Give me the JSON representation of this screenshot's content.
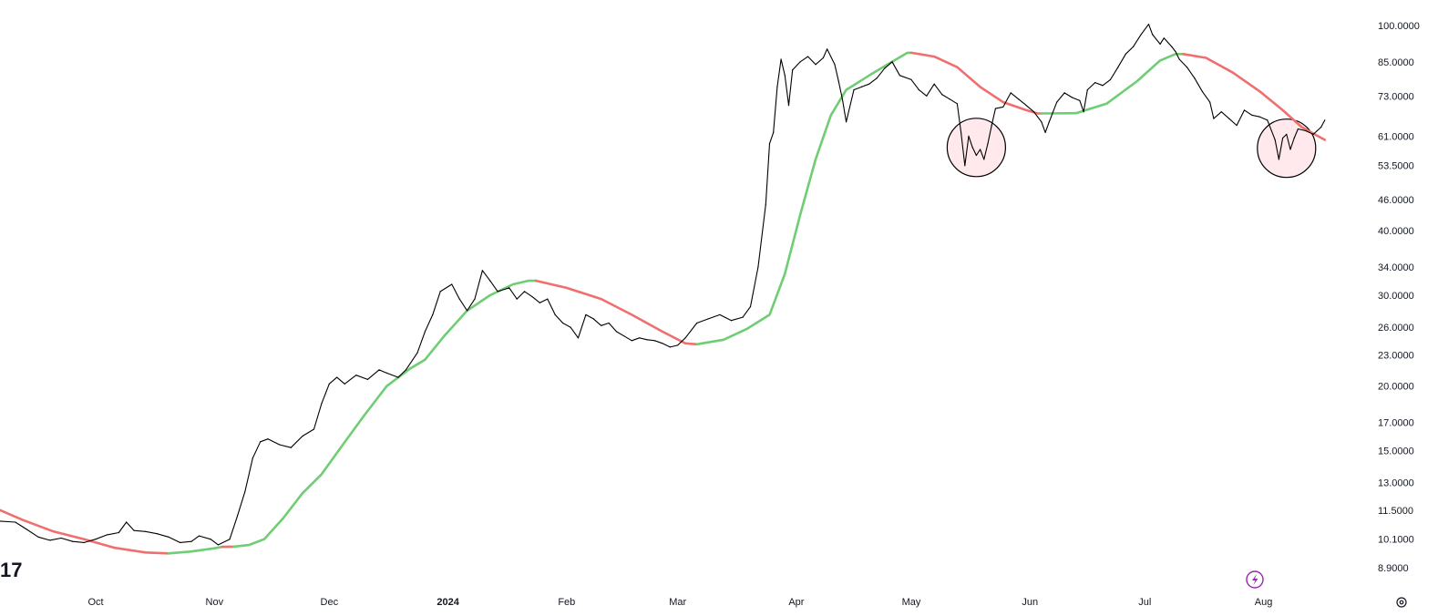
{
  "chart_data": {
    "type": "line",
    "scale": "log",
    "grid": false,
    "y_ticks": [
      "100.0000",
      "85.0000",
      "73.0000",
      "61.0000",
      "53.5000",
      "46.0000",
      "40.0000",
      "34.0000",
      "30.0000",
      "26.0000",
      "23.0000",
      "20.0000",
      "17.0000",
      "15.0000",
      "13.0000",
      "11.5000",
      "10.1000",
      "8.9000"
    ],
    "x_ticks": [
      {
        "label": "Oct",
        "date": "2023-10-01",
        "bold": false
      },
      {
        "label": "Nov",
        "date": "2023-11-01",
        "bold": false
      },
      {
        "label": "Dec",
        "date": "2023-12-01",
        "bold": false
      },
      {
        "label": "2024",
        "date": "2024-01-01",
        "bold": true
      },
      {
        "label": "Feb",
        "date": "2024-02-01",
        "bold": false
      },
      {
        "label": "Mar",
        "date": "2024-03-01",
        "bold": false
      },
      {
        "label": "Apr",
        "date": "2024-04-01",
        "bold": false
      },
      {
        "label": "May",
        "date": "2024-05-01",
        "bold": false
      },
      {
        "label": "Jun",
        "date": "2024-06-01",
        "bold": false
      },
      {
        "label": "Jul",
        "date": "2024-07-01",
        "bold": false
      },
      {
        "label": "Aug",
        "date": "2024-08-01",
        "bold": false
      }
    ],
    "x_range": [
      "2023-09-06",
      "2024-08-28"
    ],
    "y_range": [
      8.3,
      112
    ],
    "series": [
      {
        "kind": "price",
        "color": "#000000",
        "points": [
          [
            "2023-09-06",
            10.95
          ],
          [
            "2023-09-10",
            10.9
          ],
          [
            "2023-09-13",
            10.55
          ],
          [
            "2023-09-16",
            10.2
          ],
          [
            "2023-09-19",
            10.05
          ],
          [
            "2023-09-22",
            10.15
          ],
          [
            "2023-09-25",
            10.0
          ],
          [
            "2023-09-28",
            9.95
          ],
          [
            "2023-10-01",
            10.1
          ],
          [
            "2023-10-04",
            10.3
          ],
          [
            "2023-10-07",
            10.4
          ],
          [
            "2023-10-09",
            10.9
          ],
          [
            "2023-10-11",
            10.5
          ],
          [
            "2023-10-14",
            10.45
          ],
          [
            "2023-10-17",
            10.35
          ],
          [
            "2023-10-20",
            10.2
          ],
          [
            "2023-10-23",
            9.95
          ],
          [
            "2023-10-26",
            10.0
          ],
          [
            "2023-10-28",
            10.25
          ],
          [
            "2023-10-31",
            10.1
          ],
          [
            "2023-11-02",
            9.85
          ],
          [
            "2023-11-05",
            10.1
          ],
          [
            "2023-11-07",
            11.2
          ],
          [
            "2023-11-09",
            12.5
          ],
          [
            "2023-11-11",
            14.5
          ],
          [
            "2023-11-13",
            15.6
          ],
          [
            "2023-11-15",
            15.8
          ],
          [
            "2023-11-18",
            15.4
          ],
          [
            "2023-11-21",
            15.2
          ],
          [
            "2023-11-24",
            16.0
          ],
          [
            "2023-11-27",
            16.5
          ],
          [
            "2023-11-29",
            18.5
          ],
          [
            "2023-12-01",
            20.2
          ],
          [
            "2023-12-03",
            20.8
          ],
          [
            "2023-12-05",
            20.2
          ],
          [
            "2023-12-08",
            21.0
          ],
          [
            "2023-12-11",
            20.6
          ],
          [
            "2023-12-14",
            21.5
          ],
          [
            "2023-12-16",
            21.2
          ],
          [
            "2023-12-19",
            20.8
          ],
          [
            "2023-12-21",
            21.5
          ],
          [
            "2023-12-24",
            23.2
          ],
          [
            "2023-12-26",
            25.5
          ],
          [
            "2023-12-28",
            27.5
          ],
          [
            "2023-12-30",
            30.5
          ],
          [
            "2024-01-02",
            31.5
          ],
          [
            "2024-01-04",
            29.5
          ],
          [
            "2024-01-06",
            28.0
          ],
          [
            "2024-01-08",
            29.5
          ],
          [
            "2024-01-10",
            33.5
          ],
          [
            "2024-01-12",
            32.0
          ],
          [
            "2024-01-14",
            30.5
          ],
          [
            "2024-01-17",
            31.0
          ],
          [
            "2024-01-19",
            29.5
          ],
          [
            "2024-01-21",
            30.5
          ],
          [
            "2024-01-23",
            29.8
          ],
          [
            "2024-01-25",
            29.0
          ],
          [
            "2024-01-27",
            29.5
          ],
          [
            "2024-01-29",
            27.5
          ],
          [
            "2024-01-31",
            26.5
          ],
          [
            "2024-02-02",
            26.0
          ],
          [
            "2024-02-04",
            24.8
          ],
          [
            "2024-02-06",
            27.5
          ],
          [
            "2024-02-08",
            27.0
          ],
          [
            "2024-02-10",
            26.2
          ],
          [
            "2024-02-12",
            26.5
          ],
          [
            "2024-02-14",
            25.5
          ],
          [
            "2024-02-16",
            25.0
          ],
          [
            "2024-02-18",
            24.5
          ],
          [
            "2024-02-20",
            24.8
          ],
          [
            "2024-02-22",
            24.6
          ],
          [
            "2024-02-24",
            24.5
          ],
          [
            "2024-02-26",
            24.2
          ],
          [
            "2024-02-28",
            23.8
          ],
          [
            "2024-03-01",
            24.0
          ],
          [
            "2024-03-03",
            24.8
          ],
          [
            "2024-03-06",
            26.5
          ],
          [
            "2024-03-09",
            27.0
          ],
          [
            "2024-03-12",
            27.5
          ],
          [
            "2024-03-15",
            26.8
          ],
          [
            "2024-03-18",
            27.2
          ],
          [
            "2024-03-20",
            28.5
          ],
          [
            "2024-03-22",
            34.0
          ],
          [
            "2024-03-24",
            45.0
          ],
          [
            "2024-03-25",
            59.0
          ],
          [
            "2024-03-26",
            62.0
          ],
          [
            "2024-03-27",
            76.0
          ],
          [
            "2024-03-28",
            86.0
          ],
          [
            "2024-03-29",
            80.0
          ],
          [
            "2024-03-30",
            70.0
          ],
          [
            "2024-03-31",
            82.0
          ],
          [
            "2024-04-02",
            85.0
          ],
          [
            "2024-04-04",
            87.0
          ],
          [
            "2024-04-06",
            84.0
          ],
          [
            "2024-04-08",
            86.5
          ],
          [
            "2024-04-09",
            90.0
          ],
          [
            "2024-04-11",
            84.0
          ],
          [
            "2024-04-12",
            78.0
          ],
          [
            "2024-04-13",
            72.0
          ],
          [
            "2024-04-14",
            65.0
          ],
          [
            "2024-04-16",
            75.0
          ],
          [
            "2024-04-18",
            76.0
          ],
          [
            "2024-04-20",
            77.0
          ],
          [
            "2024-04-22",
            79.0
          ],
          [
            "2024-04-24",
            82.5
          ],
          [
            "2024-04-26",
            85.0
          ],
          [
            "2024-04-28",
            80.0
          ],
          [
            "2024-05-01",
            78.5
          ],
          [
            "2024-05-03",
            75.0
          ],
          [
            "2024-05-05",
            73.0
          ],
          [
            "2024-05-07",
            77.0
          ],
          [
            "2024-05-09",
            73.5
          ],
          [
            "2024-05-11",
            72.0
          ],
          [
            "2024-05-13",
            70.5
          ],
          [
            "2024-05-14",
            62.0
          ],
          [
            "2024-05-15",
            53.5
          ],
          [
            "2024-05-16",
            61.0
          ],
          [
            "2024-05-17",
            58.0
          ],
          [
            "2024-05-18",
            56.0
          ],
          [
            "2024-05-19",
            57.5
          ],
          [
            "2024-05-20",
            55.0
          ],
          [
            "2024-05-21",
            59.0
          ],
          [
            "2024-05-22",
            64.0
          ],
          [
            "2024-05-23",
            69.0
          ],
          [
            "2024-05-25",
            69.5
          ],
          [
            "2024-05-27",
            74.0
          ],
          [
            "2024-05-29",
            72.0
          ],
          [
            "2024-05-31",
            70.0
          ],
          [
            "2024-06-02",
            68.0
          ],
          [
            "2024-06-04",
            65.0
          ],
          [
            "2024-06-05",
            62.0
          ],
          [
            "2024-06-06",
            65.0
          ],
          [
            "2024-06-08",
            71.0
          ],
          [
            "2024-06-10",
            74.0
          ],
          [
            "2024-06-12",
            72.5
          ],
          [
            "2024-06-14",
            71.5
          ],
          [
            "2024-06-15",
            68.0
          ],
          [
            "2024-06-16",
            75.0
          ],
          [
            "2024-06-18",
            77.5
          ],
          [
            "2024-06-20",
            76.5
          ],
          [
            "2024-06-22",
            78.5
          ],
          [
            "2024-06-24",
            83.0
          ],
          [
            "2024-06-26",
            88.0
          ],
          [
            "2024-06-28",
            91.0
          ],
          [
            "2024-06-30",
            96.0
          ],
          [
            "2024-07-02",
            100.5
          ],
          [
            "2024-07-03",
            96.0
          ],
          [
            "2024-07-05",
            92.0
          ],
          [
            "2024-07-06",
            94.5
          ],
          [
            "2024-07-08",
            91.0
          ],
          [
            "2024-07-09",
            89.0
          ],
          [
            "2024-07-10",
            86.0
          ],
          [
            "2024-07-12",
            83.0
          ],
          [
            "2024-07-14",
            79.0
          ],
          [
            "2024-07-16",
            74.5
          ],
          [
            "2024-07-18",
            71.0
          ],
          [
            "2024-07-19",
            66.0
          ],
          [
            "2024-07-21",
            68.0
          ],
          [
            "2024-07-23",
            66.0
          ],
          [
            "2024-07-25",
            64.0
          ],
          [
            "2024-07-27",
            68.5
          ],
          [
            "2024-07-29",
            67.0
          ],
          [
            "2024-07-31",
            66.5
          ],
          [
            "2024-08-02",
            65.5
          ],
          [
            "2024-08-04",
            60.0
          ],
          [
            "2024-08-05",
            55.0
          ],
          [
            "2024-08-06",
            60.5
          ],
          [
            "2024-08-07",
            61.5
          ],
          [
            "2024-08-08",
            57.5
          ],
          [
            "2024-08-09",
            60.5
          ],
          [
            "2024-08-10",
            63.0
          ],
          [
            "2024-08-12",
            62.5
          ],
          [
            "2024-08-14",
            61.5
          ],
          [
            "2024-08-15",
            62.5
          ],
          [
            "2024-08-16",
            63.5
          ],
          [
            "2024-08-17",
            65.5
          ]
        ]
      },
      {
        "kind": "moving-average",
        "up_color": "#6fcd74",
        "down_color": "#ef6f6f",
        "points": [
          [
            "2023-09-06",
            11.5,
            "down"
          ],
          [
            "2023-09-12",
            11.0,
            "down"
          ],
          [
            "2023-09-20",
            10.45,
            "down"
          ],
          [
            "2023-09-28",
            10.1,
            "down"
          ],
          [
            "2023-10-06",
            9.72,
            "down"
          ],
          [
            "2023-10-14",
            9.52,
            "down"
          ],
          [
            "2023-10-20",
            9.48,
            "up"
          ],
          [
            "2023-10-26",
            9.56,
            "up"
          ],
          [
            "2023-11-01",
            9.7,
            "up"
          ],
          [
            "2023-11-03",
            9.76,
            "down"
          ],
          [
            "2023-11-06",
            9.77,
            "up"
          ],
          [
            "2023-11-10",
            9.84,
            "up"
          ],
          [
            "2023-11-14",
            10.1,
            "up"
          ],
          [
            "2023-11-19",
            11.1,
            "up"
          ],
          [
            "2023-11-24",
            12.4,
            "up"
          ],
          [
            "2023-11-29",
            13.5,
            "up"
          ],
          [
            "2023-12-04",
            15.2,
            "up"
          ],
          [
            "2023-12-10",
            17.5,
            "up"
          ],
          [
            "2023-12-16",
            20.0,
            "up"
          ],
          [
            "2023-12-22",
            21.6,
            "up"
          ],
          [
            "2023-12-26",
            22.5,
            "up"
          ],
          [
            "2023-12-31",
            25.0,
            "up"
          ],
          [
            "2024-01-06",
            28.0,
            "up"
          ],
          [
            "2024-01-12",
            30.0,
            "up"
          ],
          [
            "2024-01-18",
            31.5,
            "up"
          ],
          [
            "2024-01-22",
            32.0,
            "up"
          ],
          [
            "2024-01-24",
            32.0,
            "down"
          ],
          [
            "2024-02-01",
            31.0,
            "down"
          ],
          [
            "2024-02-10",
            29.5,
            "down"
          ],
          [
            "2024-02-18",
            27.5,
            "down"
          ],
          [
            "2024-02-26",
            25.5,
            "down"
          ],
          [
            "2024-03-03",
            24.2,
            "down"
          ],
          [
            "2024-03-06",
            24.1,
            "up"
          ],
          [
            "2024-03-13",
            24.6,
            "up"
          ],
          [
            "2024-03-19",
            25.8,
            "up"
          ],
          [
            "2024-03-25",
            27.5,
            "up"
          ],
          [
            "2024-03-29",
            33.0,
            "up"
          ],
          [
            "2024-04-02",
            43.0,
            "up"
          ],
          [
            "2024-04-06",
            55.0,
            "up"
          ],
          [
            "2024-04-10",
            67.0,
            "up"
          ],
          [
            "2024-04-14",
            75.0,
            "up"
          ],
          [
            "2024-04-20",
            80.0,
            "up"
          ],
          [
            "2024-04-26",
            85.0,
            "up"
          ],
          [
            "2024-04-30",
            88.5,
            "up"
          ],
          [
            "2024-05-01",
            88.5,
            "down"
          ],
          [
            "2024-05-07",
            87.0,
            "down"
          ],
          [
            "2024-05-13",
            83.0,
            "down"
          ],
          [
            "2024-05-19",
            76.0,
            "down"
          ],
          [
            "2024-05-25",
            71.0,
            "down"
          ],
          [
            "2024-05-31",
            68.5,
            "down"
          ],
          [
            "2024-06-03",
            67.5,
            "down"
          ],
          [
            "2024-06-04",
            67.5,
            "up"
          ],
          [
            "2024-06-13",
            67.6,
            "up"
          ],
          [
            "2024-06-21",
            70.5,
            "up"
          ],
          [
            "2024-06-29",
            78.0,
            "up"
          ],
          [
            "2024-07-05",
            85.5,
            "up"
          ],
          [
            "2024-07-09",
            88.0,
            "up"
          ],
          [
            "2024-07-11",
            88.0,
            "down"
          ],
          [
            "2024-07-17",
            86.5,
            "down"
          ],
          [
            "2024-07-24",
            81.0,
            "down"
          ],
          [
            "2024-07-31",
            74.5,
            "down"
          ],
          [
            "2024-08-06",
            68.5,
            "down"
          ],
          [
            "2024-08-11",
            63.5,
            "down"
          ],
          [
            "2024-08-17",
            60.0,
            "down"
          ]
        ]
      }
    ],
    "annotations": [
      {
        "kind": "circle",
        "date": "2024-05-18",
        "value": 58.0,
        "stroke": "#000000",
        "fill": "rgba(255,182,193,0.3)"
      },
      {
        "kind": "circle",
        "date": "2024-08-07",
        "value": 57.8,
        "stroke": "#000000",
        "fill": "rgba(255,182,193,0.3)"
      }
    ]
  },
  "logo": {
    "text": "17"
  },
  "toolbar": {
    "flash_icon": "flash-icon",
    "settings_icon": "gear-icon",
    "accent": "#9c27b0"
  }
}
